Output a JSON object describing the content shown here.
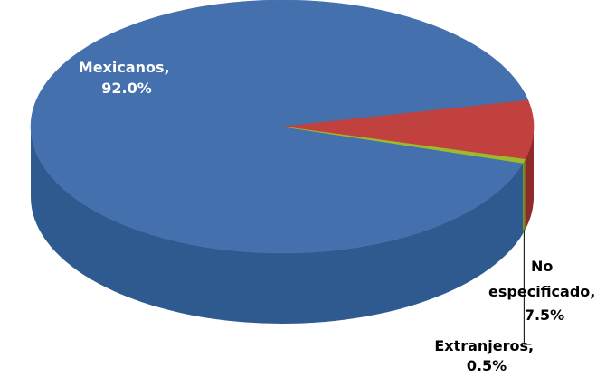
{
  "chart_data": {
    "type": "pie",
    "style": "3d",
    "slices": [
      {
        "category": "Mexicanos",
        "value": 92.0,
        "label_line1": "Mexicanos,",
        "label_line2": "92.0%",
        "color": "#4470ad",
        "side_color": "#2f5a8f",
        "label_color": "#ffffff"
      },
      {
        "category": "No especificado",
        "value": 7.5,
        "label_line1": "No",
        "label_line2": "especificado,",
        "label_line3": "7.5%",
        "color": "#c0413e",
        "side_color": "#8e2a29",
        "label_color": "#000000"
      },
      {
        "category": "Extranjeros",
        "value": 0.5,
        "label_line1": "Extranjeros,",
        "label_line2": "0.5%",
        "color": "#9bbb2a",
        "side_color": "#6e8a1a",
        "label_color": "#000000"
      }
    ],
    "legend": "none",
    "data_labels": "category and percentage"
  }
}
